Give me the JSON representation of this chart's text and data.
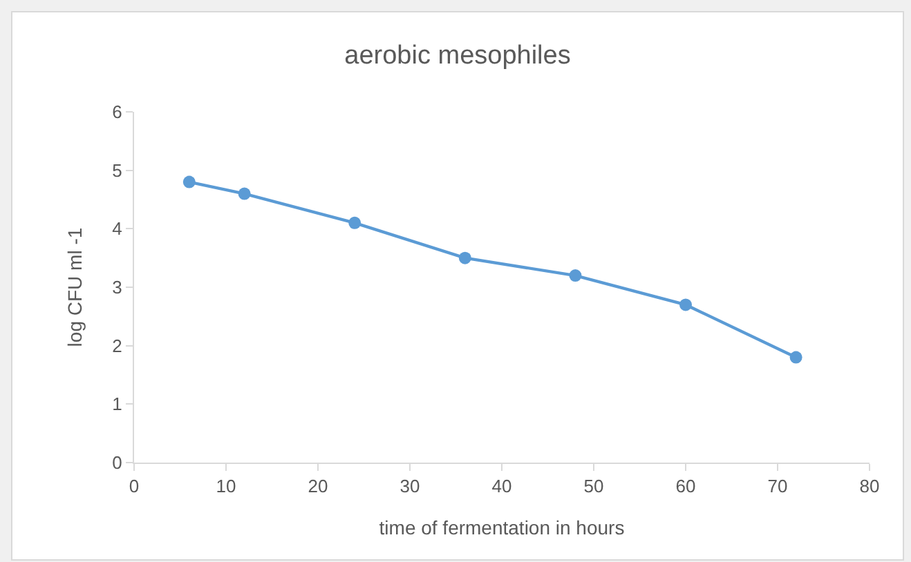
{
  "chart_data": {
    "type": "line",
    "title": "aerobic mesophiles",
    "xlabel": "time of fermentation in hours",
    "ylabel": "log CFU ml -1",
    "x": [
      6,
      12,
      24,
      36,
      48,
      60,
      72
    ],
    "series": [
      {
        "color": "#5b9bd5",
        "values": [
          4.8,
          4.6,
          4.1,
          3.5,
          3.2,
          2.7,
          1.8
        ]
      }
    ],
    "xlim": [
      0,
      80
    ],
    "xticks": [
      0,
      10,
      20,
      30,
      40,
      50,
      60,
      70,
      80
    ],
    "ylim": [
      0,
      6
    ],
    "yticks": [
      0,
      1,
      2,
      3,
      4,
      5,
      6
    ],
    "grid": false,
    "marker": "circle",
    "line_style": "solid"
  }
}
